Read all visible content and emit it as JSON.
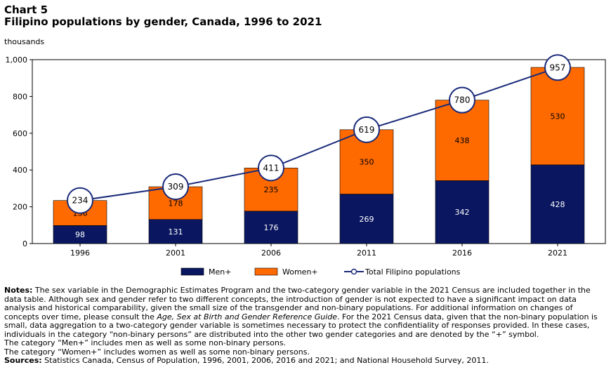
{
  "header": {
    "chart_number": "Chart 5",
    "title": "Filipino  populations  by gender, Canada, 1996 to 2021",
    "units": "thousands"
  },
  "chart_data": {
    "type": "bar",
    "stacked": true,
    "categories": [
      "1996",
      "2001",
      "2006",
      "2011",
      "2016",
      "2021"
    ],
    "series": [
      {
        "name": "Men+",
        "type": "bar",
        "color": "#0a1760",
        "values": [
          98,
          131,
          176,
          269,
          342,
          428
        ]
      },
      {
        "name": "Women+",
        "type": "bar",
        "color": "#ff6a00",
        "values": [
          136,
          178,
          235,
          350,
          438,
          530
        ]
      },
      {
        "name": "Total Filipino populations",
        "type": "line",
        "color": "#1a2a7a",
        "values": [
          234,
          309,
          411,
          619,
          780,
          957
        ]
      }
    ],
    "ylim": [
      0,
      1000
    ],
    "yticks": [
      0,
      200,
      400,
      600,
      800,
      1000
    ],
    "ytick_labels": [
      "0",
      "200",
      "400",
      "600",
      "800",
      "1,000"
    ],
    "grid": false,
    "legend_position": "bottom"
  },
  "notes": {
    "label": "Notes:",
    "text_1": " The sex variable in the Demographic Estimates Program and the two-category gender variable in the 2021 Census are included together in the data table. Although sex and gender refer to two different concepts, the introduction of gender is not expected to have a significant impact on data analysis and historical comparability, given the small size of the transgender and non-binary populations. For additional information on changes of concepts over time, please consult the ",
    "guide_title": "Age, Sex at Birth and Gender Reference Guide",
    "text_2": ". For the 2021 Census data, given that the non-binary population is small, data aggregation to a two-category gender variable is sometimes necessary to protect the confidentiality of responses provided. In these cases, individuals in the category “non-binary persons” are distributed into the other two gender categories and are denoted by the “+” symbol.",
    "men_note": "The category “Men+” includes men as well as some non-binary persons.",
    "women_note": "The category “Women+” includes women as well as some non-binary persons.",
    "sources_label": "Sources:",
    "sources_text": " Statistics Canada, Census of Population, 1996, 2001, 2006, 2016 and 2021; and National Household Survey, 2011."
  }
}
